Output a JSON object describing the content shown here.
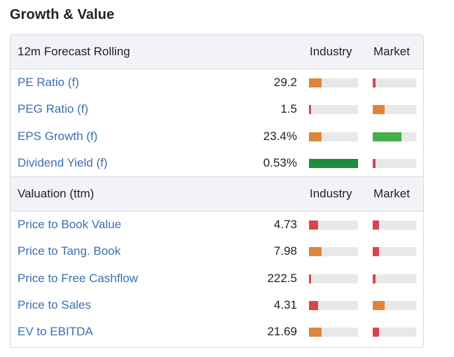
{
  "title": "Growth & Value",
  "colors": {
    "orange": "#e0843a",
    "red": "#d9454f",
    "green": "#45b045",
    "dark_green": "#1e8c3c",
    "track": "#e8e8e8",
    "link": "#3a6fb0",
    "header_bg": "#f1f3f7"
  },
  "forecast": {
    "header": "12m Forecast Rolling",
    "industry_label": "Industry",
    "market_label": "Market",
    "rows": [
      {
        "name": "PE Ratio (f)",
        "value": "29.2",
        "industry": {
          "level": 0.26,
          "color": "orange"
        },
        "market": {
          "level": 0.06,
          "color": "red"
        }
      },
      {
        "name": "PEG Ratio (f)",
        "value": "1.5",
        "industry": {
          "level": 0.04,
          "color": "red"
        },
        "market": {
          "level": 0.27,
          "color": "orange"
        }
      },
      {
        "name": "EPS Growth (f)",
        "value": "23.4%",
        "industry": {
          "level": 0.26,
          "color": "orange"
        },
        "market": {
          "level": 0.66,
          "color": "green"
        }
      },
      {
        "name": "Dividend Yield (f)",
        "value": "0.53%",
        "industry": {
          "level": 1.0,
          "color": "dark_green"
        },
        "market": {
          "level": 0.06,
          "color": "red"
        }
      }
    ]
  },
  "valuation": {
    "header": "Valuation (ttm)",
    "industry_label": "Industry",
    "market_label": "Market",
    "rows": [
      {
        "name": "Price to Book Value",
        "value": "4.73",
        "industry": {
          "level": 0.18,
          "color": "red"
        },
        "market": {
          "level": 0.15,
          "color": "red"
        }
      },
      {
        "name": "Price to Tang. Book",
        "value": "7.98",
        "industry": {
          "level": 0.26,
          "color": "orange"
        },
        "market": {
          "level": 0.15,
          "color": "red"
        }
      },
      {
        "name": "Price to Free Cashflow",
        "value": "222.5",
        "industry": {
          "level": 0.04,
          "color": "red"
        },
        "market": {
          "level": 0.06,
          "color": "red"
        }
      },
      {
        "name": "Price to Sales",
        "value": "4.31",
        "industry": {
          "level": 0.18,
          "color": "red"
        },
        "market": {
          "level": 0.27,
          "color": "orange"
        }
      },
      {
        "name": "EV to EBITDA",
        "value": "21.69",
        "industry": {
          "level": 0.26,
          "color": "orange"
        },
        "market": {
          "level": 0.15,
          "color": "red"
        }
      }
    ]
  }
}
